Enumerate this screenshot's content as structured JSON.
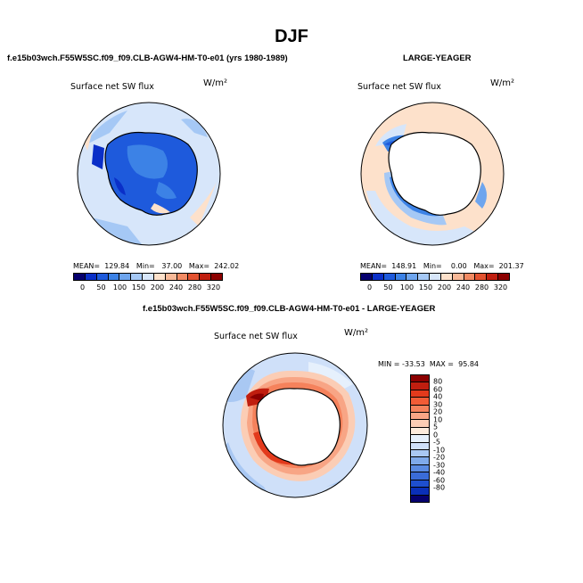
{
  "figure": {
    "title": "DJF"
  },
  "panel_left": {
    "case_title": "f.e15b03wch.F55W5SC.f09_f09.CLB-AGW4-HM-T0-e01 (yrs 1980-1989)",
    "label": "Surface net SW flux",
    "units": "W/m²",
    "stats": "MEAN=  129.84   Min=   37.00   Max=  242.02"
  },
  "panel_right": {
    "case_title": "LARGE-YEAGER",
    "label": "Surface net SW flux",
    "units": "W/m²",
    "stats": "MEAN=  148.91   Min=    0.00   Max=  201.37"
  },
  "panel_diff": {
    "case_title": "f.e15b03wch.F55W5SC.f09_f09.CLB-AGW4-HM-T0-e01 - LARGE-YEAGER",
    "label": "Surface net SW flux",
    "units": "W/m²",
    "stats": "MIN = -33.53  MAX =  95.84"
  },
  "colorbar_abs": {
    "colors": [
      "#06006e",
      "#0a2fc8",
      "#1e5adc",
      "#3c82e6",
      "#6ea5ee",
      "#a5c8f5",
      "#d7e6fa",
      "#fde1cb",
      "#f8b998",
      "#f28a63",
      "#e35230",
      "#c01e0f",
      "#8c0000"
    ],
    "ticks": [
      "0",
      "50",
      "100",
      "150",
      "200",
      "240",
      "280",
      "320"
    ]
  },
  "colorbar_diff": {
    "colors": [
      "#8c0000",
      "#c01e0f",
      "#e33a1c",
      "#f25c36",
      "#f5825c",
      "#f8a585",
      "#fbcdb5",
      "#fdebdc",
      "#e6f0fc",
      "#cfe0f9",
      "#a9c8f3",
      "#7faaea",
      "#5a8be2",
      "#3a6cd8",
      "#1e4fcf",
      "#0a2fb8",
      "#06006e"
    ],
    "ticks": [
      "80",
      "60",
      "40",
      "30",
      "20",
      "10",
      "5",
      "0",
      "-5",
      "-10",
      "-20",
      "-30",
      "-40",
      "-60",
      "-80"
    ]
  }
}
